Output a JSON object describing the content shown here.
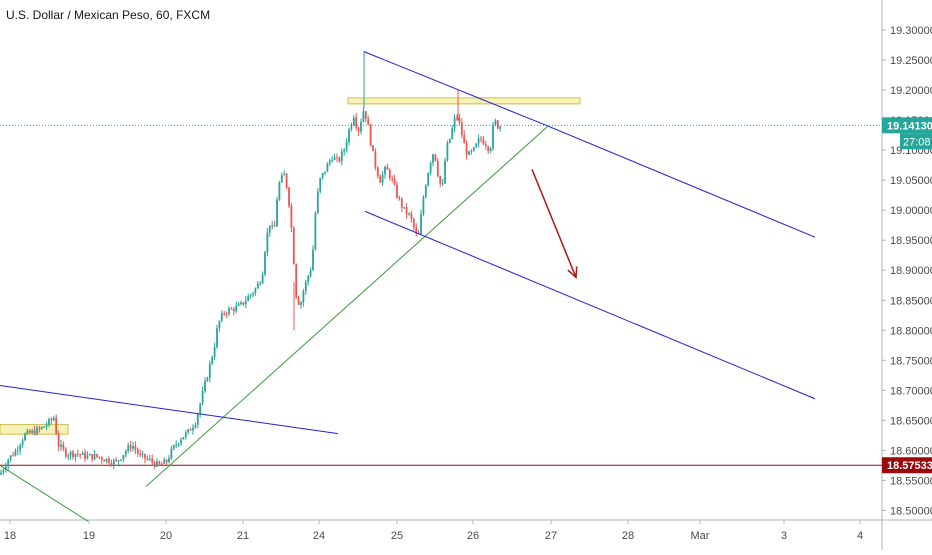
{
  "title": "U.S. Dollar / Mexican Peso, 60, FXCM",
  "colors": {
    "up": "#26a69a",
    "down": "#ef5350",
    "trend_blue": "#1f1fe0",
    "trend_green": "#3a9a3a",
    "support_red": "#9b0a0a",
    "zone_fill": "#f5f0b0",
    "zone_stroke": "#c9b63a",
    "current_price": "#26a69a",
    "arrow": "#b01818",
    "axis_text": "#4a4a4a"
  },
  "chart_data": {
    "type": "candlestick",
    "title": "U.S. Dollar / Mexican Peso, 60, FXCM",
    "ylim": [
      18.48,
      19.34
    ],
    "xlim": [
      0,
      912
    ],
    "y_ticks": [
      "19.30000",
      "19.25000",
      "19.20000",
      "19.15000",
      "19.10000",
      "19.05000",
      "19.00000",
      "18.95000",
      "18.90000",
      "18.85000",
      "18.80000",
      "18.75000",
      "18.70000",
      "18.65000",
      "18.60000",
      "18.55000",
      "18.50000"
    ],
    "y_tick_values": [
      19.3,
      19.25,
      19.2,
      19.15,
      19.1,
      19.05,
      19.0,
      18.95,
      18.9,
      18.85,
      18.8,
      18.75,
      18.7,
      18.65,
      18.6,
      18.55,
      18.5
    ],
    "x_ticks": [
      {
        "label": "18",
        "x": 10
      },
      {
        "label": "19",
        "x": 89
      },
      {
        "label": "20",
        "x": 166
      },
      {
        "label": "21",
        "x": 243
      },
      {
        "label": "24",
        "x": 319
      },
      {
        "label": "25",
        "x": 397
      },
      {
        "label": "26",
        "x": 473
      },
      {
        "label": "27",
        "x": 551
      },
      {
        "label": "28",
        "x": 628
      },
      {
        "label": "Mar",
        "x": 700
      },
      {
        "label": "3",
        "x": 784
      },
      {
        "label": "4",
        "x": 860
      }
    ],
    "current_price": {
      "label": "19.14130",
      "value": 19.1413,
      "countdown": "27:08"
    },
    "support_price": {
      "label": "18.57533",
      "value": 18.57533
    },
    "candle_anchors": [
      [
        0,
        18.56
      ],
      [
        8,
        18.585
      ],
      [
        16,
        18.6
      ],
      [
        24,
        18.625
      ],
      [
        32,
        18.63
      ],
      [
        40,
        18.635
      ],
      [
        48,
        18.645
      ],
      [
        54,
        18.655
      ],
      [
        58,
        18.61
      ],
      [
        66,
        18.595
      ],
      [
        76,
        18.595
      ],
      [
        86,
        18.59
      ],
      [
        96,
        18.59
      ],
      [
        106,
        18.585
      ],
      [
        116,
        18.58
      ],
      [
        126,
        18.6
      ],
      [
        132,
        18.61
      ],
      [
        140,
        18.59
      ],
      [
        148,
        18.585
      ],
      [
        158,
        18.575
      ],
      [
        166,
        18.58
      ],
      [
        172,
        18.6
      ],
      [
        180,
        18.62
      ],
      [
        188,
        18.63
      ],
      [
        196,
        18.65
      ],
      [
        202,
        18.69
      ],
      [
        208,
        18.73
      ],
      [
        214,
        18.77
      ],
      [
        218,
        18.81
      ],
      [
        224,
        18.83
      ],
      [
        232,
        18.835
      ],
      [
        240,
        18.84
      ],
      [
        248,
        18.855
      ],
      [
        256,
        18.87
      ],
      [
        262,
        18.89
      ],
      [
        266,
        18.95
      ],
      [
        270,
        18.98
      ],
      [
        274,
        18.96
      ],
      [
        278,
        19.04
      ],
      [
        284,
        19.06
      ],
      [
        288,
        19.03
      ],
      [
        292,
        18.96
      ],
      [
        296,
        18.86
      ],
      [
        300,
        18.84
      ],
      [
        304,
        18.87
      ],
      [
        308,
        18.89
      ],
      [
        312,
        18.91
      ],
      [
        316,
        19.01
      ],
      [
        320,
        19.05
      ],
      [
        326,
        19.07
      ],
      [
        332,
        19.09
      ],
      [
        338,
        19.08
      ],
      [
        344,
        19.1
      ],
      [
        350,
        19.14
      ],
      [
        354,
        19.16
      ],
      [
        358,
        19.13
      ],
      [
        364,
        19.17
      ],
      [
        368,
        19.14
      ],
      [
        372,
        19.1
      ],
      [
        376,
        19.07
      ],
      [
        380,
        19.05
      ],
      [
        386,
        19.07
      ],
      [
        392,
        19.05
      ],
      [
        398,
        19.02
      ],
      [
        404,
        19.0
      ],
      [
        410,
        18.99
      ],
      [
        414,
        18.97
      ],
      [
        418,
        18.95
      ],
      [
        424,
        19.03
      ],
      [
        430,
        19.08
      ],
      [
        434,
        19.1
      ],
      [
        438,
        19.06
      ],
      [
        442,
        19.03
      ],
      [
        446,
        19.1
      ],
      [
        450,
        19.12
      ],
      [
        456,
        19.16
      ],
      [
        460,
        19.14
      ],
      [
        464,
        19.11
      ],
      [
        468,
        19.09
      ],
      [
        474,
        19.1
      ],
      [
        480,
        19.12
      ],
      [
        486,
        19.11
      ],
      [
        490,
        19.1
      ],
      [
        494,
        19.15
      ],
      [
        498,
        19.14
      ],
      [
        502,
        19.14
      ]
    ]
  },
  "drawings": {
    "green_trendline": {
      "points": [
        [
          146,
          18.54
        ],
        [
          548,
          19.14
        ]
      ]
    },
    "green_lower_line": {
      "points": [
        [
          0,
          18.575
        ],
        [
          88,
          18.482
        ]
      ]
    },
    "blue_resistance": {
      "points": [
        [
          364,
          19.264
        ],
        [
          548,
          19.14
        ],
        [
          815,
          18.955
        ]
      ]
    },
    "blue_channel": {
      "points": [
        [
          365,
          18.998
        ],
        [
          815,
          18.686
        ]
      ]
    },
    "blue_old_line": {
      "points": [
        [
          0,
          18.708
        ],
        [
          338,
          18.628
        ]
      ]
    },
    "zone_top": {
      "x0": 348,
      "x1": 580,
      "y_high": 19.187,
      "y_low": 19.177
    },
    "zone_left": {
      "x0": 0,
      "x1": 68,
      "y_high": 18.643,
      "y_low": 18.627
    },
    "arrow": {
      "from": [
        532,
        19.068
      ],
      "to": [
        576,
        18.888
      ]
    }
  }
}
